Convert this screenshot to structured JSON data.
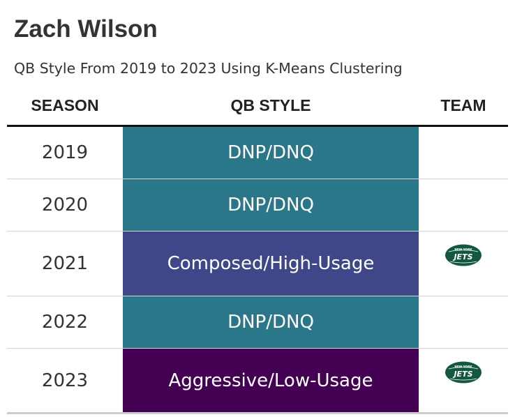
{
  "title": "Zach Wilson",
  "subtitle": "QB Style From 2019 to 2023 Using K-Means Clustering",
  "columns": {
    "season": "SEASON",
    "qb_style": "QB STYLE",
    "team": "TEAM"
  },
  "rows": [
    {
      "season": "2019",
      "qb_style": "DNP/DNQ",
      "team_logo": ""
    },
    {
      "season": "2020",
      "qb_style": "DNP/DNQ",
      "team_logo": ""
    },
    {
      "season": "2021",
      "qb_style": "Composed/High-Usage",
      "team_logo": "jets-logo"
    },
    {
      "season": "2022",
      "qb_style": "DNP/DNQ",
      "team_logo": ""
    },
    {
      "season": "2023",
      "qb_style": "Aggressive/Low-Usage",
      "team_logo": "jets-logo"
    }
  ],
  "team_logo_text": {
    "top": "NEW YORK",
    "main": "JETS"
  },
  "style_colors": {
    "DNP/DNQ": "#2a778a",
    "Composed/High-Usage": "#3f4788",
    "Aggressive/Low-Usage": "#440154"
  },
  "logo_color": "#125740",
  "chart_data": {
    "type": "table",
    "title": "Zach Wilson",
    "subtitle": "QB Style From 2019 to 2023 Using K-Means Clustering",
    "columns": [
      "SEASON",
      "QB STYLE",
      "TEAM"
    ],
    "rows": [
      [
        "2019",
        "DNP/DNQ",
        ""
      ],
      [
        "2020",
        "DNP/DNQ",
        ""
      ],
      [
        "2021",
        "Composed/High-Usage",
        "jets-logo"
      ],
      [
        "2022",
        "DNP/DNQ",
        ""
      ],
      [
        "2023",
        "Aggressive/Low-Usage",
        "jets-logo"
      ]
    ]
  }
}
